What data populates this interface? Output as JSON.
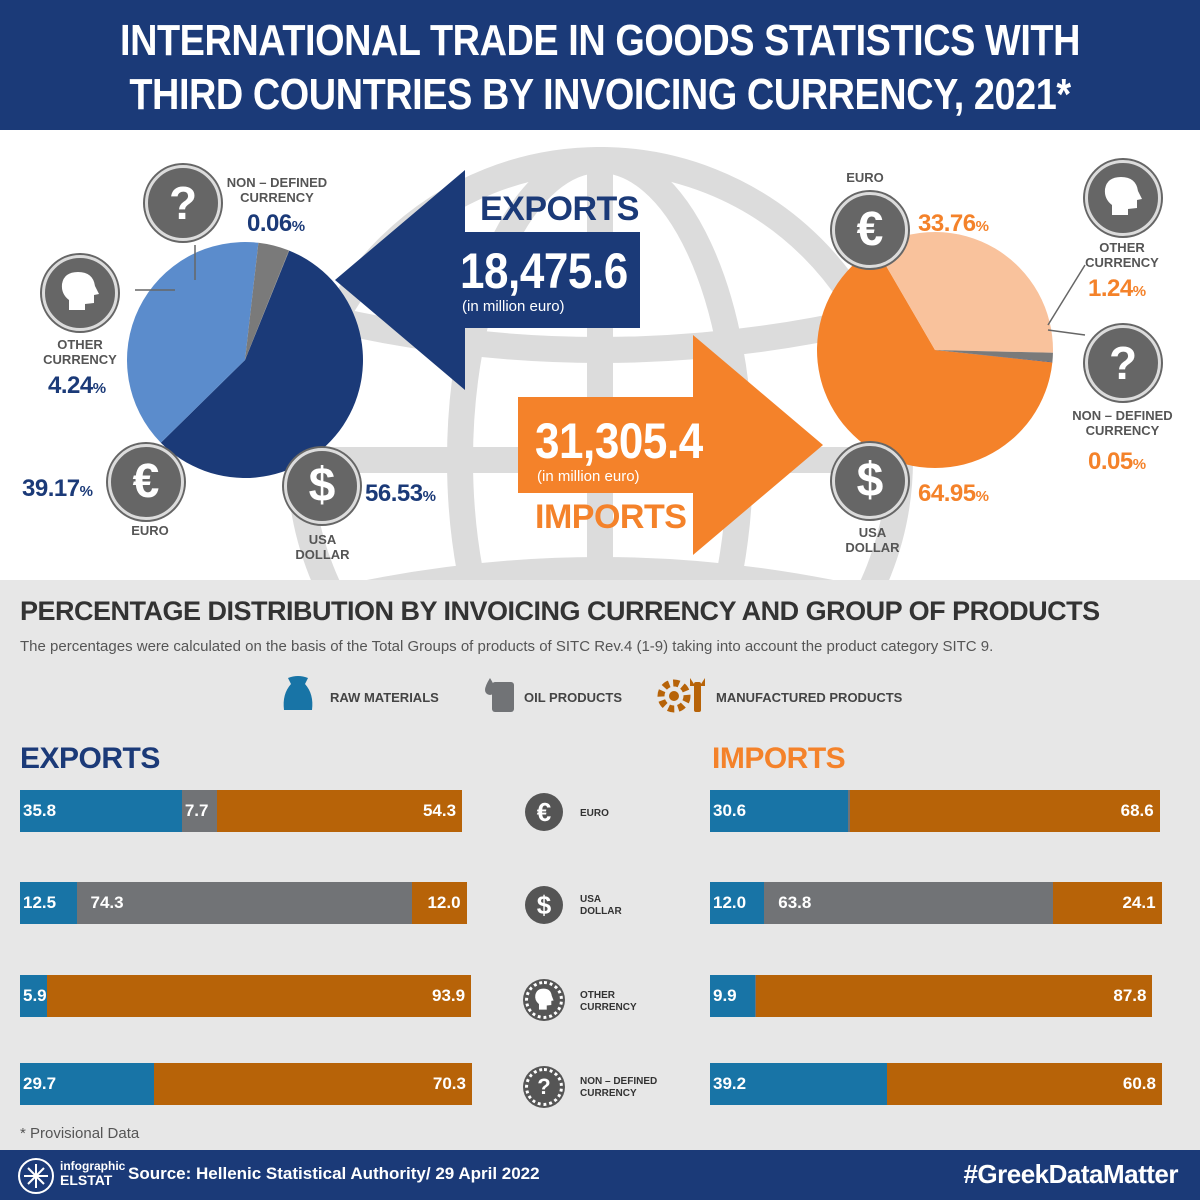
{
  "header": {
    "title_line1": "INTERNATIONAL TRADE IN GOODS STATISTICS WITH",
    "title_line2": "THIRD COUNTRIES BY INVOICING CURRENCY, 2021*"
  },
  "exports_total": {
    "label": "EXPORTS",
    "value": "18,475.6",
    "unit": "(in million euro)"
  },
  "imports_total": {
    "label": "IMPORTS",
    "value": "31,305.4",
    "unit": "(in million euro)"
  },
  "pie_labels": {
    "non_defined": "NON – DEFINED CURRENCY",
    "other": "OTHER CURRENCY",
    "euro": "EURO",
    "usa": "USA DOLLAR"
  },
  "export_pct_text": {
    "non_defined": "0.06",
    "other": "4.24",
    "euro": "39.17",
    "usa": "56.53",
    "sign": "%"
  },
  "import_pct_text": {
    "euro": "33.76",
    "other": "1.24",
    "non_defined": "0.05",
    "usa": "64.95",
    "sign": "%"
  },
  "colors": {
    "navy": "#1b3a78",
    "export_euro": "#5b8ccc",
    "grey": "#7a7a7a",
    "orange": "#f4822a",
    "import_euro": "#f9c29c",
    "raw": "#1874a6",
    "oil": "#717376",
    "manufactured": "#b76308"
  },
  "section": {
    "title": "PERCENTAGE DISTRIBUTION BY INVOICING CURRENCY AND GROUP OF PRODUCTS",
    "note": "The percentages were calculated on the basis of the Total Groups of products of SITC Rev.4 (1-9) taking into account the product category SITC 9."
  },
  "legend": {
    "raw": "RAW MATERIALS",
    "oil": "OIL PRODUCTS",
    "manufactured": "MANUFACTURED PRODUCTS"
  },
  "bars_headers": {
    "exports": "EXPORTS",
    "imports": "IMPORTS"
  },
  "mid_labels": {
    "euro": "EURO",
    "usa_1": "USA",
    "usa_2": "DOLLAR",
    "other_1": "OTHER",
    "other_2": "CURRENCY",
    "nd_1": "NON – DEFINED",
    "nd_2": "CURRENCY"
  },
  "chart_data": [
    {
      "type": "pie",
      "title": "EXPORTS",
      "categories": [
        "USA DOLLAR",
        "EURO",
        "OTHER CURRENCY",
        "NON – DEFINED CURRENCY"
      ],
      "values": [
        56.53,
        39.17,
        4.24,
        0.06
      ]
    },
    {
      "type": "pie",
      "title": "IMPORTS",
      "categories": [
        "USA DOLLAR",
        "EURO",
        "OTHER CURRENCY",
        "NON – DEFINED CURRENCY"
      ],
      "values": [
        64.95,
        33.76,
        1.24,
        0.05
      ]
    },
    {
      "type": "bar",
      "title": "EXPORTS",
      "stacked": true,
      "orientation": "horizontal",
      "categories": [
        "EURO",
        "USA DOLLAR",
        "OTHER CURRENCY",
        "NON – DEFINED CURRENCY"
      ],
      "series": [
        {
          "name": "RAW MATERIALS",
          "values": [
            35.8,
            12.5,
            5.9,
            29.7
          ]
        },
        {
          "name": "OIL PRODUCTS",
          "values": [
            7.7,
            74.3,
            null,
            null
          ]
        },
        {
          "name": "MANUFACTURED PRODUCTS",
          "values": [
            54.3,
            12.0,
            93.9,
            70.3
          ]
        }
      ]
    },
    {
      "type": "bar",
      "title": "IMPORTS",
      "stacked": true,
      "orientation": "horizontal",
      "categories": [
        "EURO",
        "USA DOLLAR",
        "OTHER CURRENCY",
        "NON – DEFINED CURRENCY"
      ],
      "series": [
        {
          "name": "RAW MATERIALS",
          "values": [
            30.6,
            12.0,
            9.9,
            39.2
          ]
        },
        {
          "name": "OIL PRODUCTS",
          "values": [
            0.3,
            63.8,
            0.2,
            null
          ]
        },
        {
          "name": "MANUFACTURED PRODUCTS",
          "values": [
            68.6,
            24.1,
            87.8,
            60.8
          ]
        }
      ]
    }
  ],
  "provisional": "* Provisional Data",
  "footer": {
    "logo_1": "infographic",
    "logo_2": "ELSTAT",
    "source": "Source: Hellenic Statistical Authority/ 29 April 2022",
    "hashtag": "#GreekDataMatter"
  }
}
